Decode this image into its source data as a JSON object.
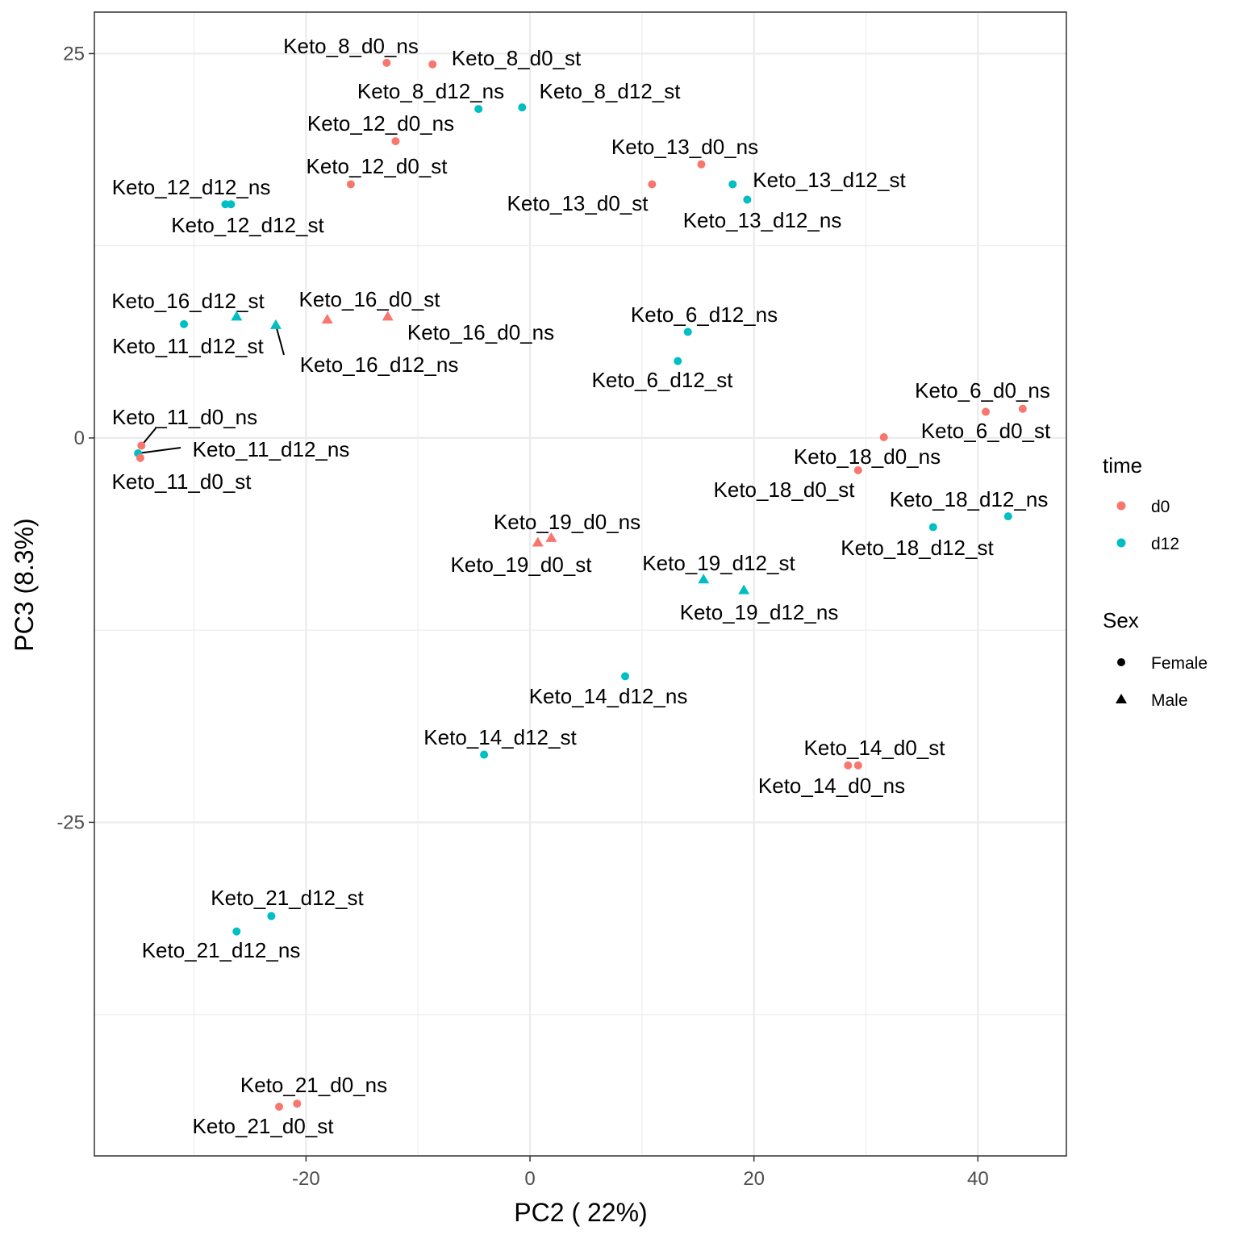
{
  "chart_data": {
    "type": "scatter",
    "title": "",
    "xlabel": "PC2 ( 22%)",
    "ylabel": "PC3 (8.3%)",
    "xlim": [
      -38.9,
      47.9
    ],
    "ylim": [
      -46.7,
      27.7
    ],
    "x_ticks": [
      -20,
      0,
      20,
      40
    ],
    "y_ticks": [
      25,
      0,
      -25
    ],
    "x_tick_labels": [
      "-20",
      "0",
      "20",
      "40"
    ],
    "y_tick_labels": [
      "25",
      "0",
      "-25"
    ],
    "grid": true,
    "colors": {
      "d0": "#F8766D",
      "d12": "#00BFC4"
    },
    "legend": {
      "placement": "right",
      "color_title": "time",
      "color_entries": [
        "d0",
        "d12"
      ],
      "shape_title": "Sex",
      "shape_entries": [
        "Female",
        "Male"
      ]
    },
    "points": [
      {
        "label": "Keto_8_d0_ns",
        "x": -12.8,
        "y": 24.4,
        "time": "d0",
        "sex": "Female"
      },
      {
        "label": "Keto_8_d0_st",
        "x": -8.7,
        "y": 24.3,
        "time": "d0",
        "sex": "Female"
      },
      {
        "label": "Keto_8_d12_ns",
        "x": -4.6,
        "y": 21.4,
        "time": "d12",
        "sex": "Female"
      },
      {
        "label": "Keto_8_d12_st",
        "x": -0.7,
        "y": 21.5,
        "time": "d12",
        "sex": "Female"
      },
      {
        "label": "Keto_12_d0_ns",
        "x": -12.0,
        "y": 19.3,
        "time": "d0",
        "sex": "Female"
      },
      {
        "label": "Keto_12_d0_st",
        "x": -16.0,
        "y": 16.5,
        "time": "d0",
        "sex": "Female"
      },
      {
        "label": "Keto_12_d12_ns",
        "x": -27.2,
        "y": 15.2,
        "time": "d12",
        "sex": "Female"
      },
      {
        "label": "Keto_12_d12_st",
        "x": -26.7,
        "y": 15.2,
        "time": "d12",
        "sex": "Female"
      },
      {
        "label": "Keto_13_d0_ns",
        "x": 15.3,
        "y": 17.8,
        "time": "d0",
        "sex": "Female"
      },
      {
        "label": "Keto_13_d0_st",
        "x": 10.9,
        "y": 16.5,
        "time": "d0",
        "sex": "Female"
      },
      {
        "label": "Keto_13_d12_st",
        "x": 18.1,
        "y": 16.5,
        "time": "d12",
        "sex": "Female"
      },
      {
        "label": "Keto_13_d12_ns",
        "x": 19.4,
        "y": 15.5,
        "time": "d12",
        "sex": "Female"
      },
      {
        "label": "Keto_16_d12_st",
        "x": -26.2,
        "y": 7.9,
        "time": "d12",
        "sex": "Male"
      },
      {
        "label": "Keto_11_d12_st",
        "x": -30.9,
        "y": 7.4,
        "time": "d12",
        "sex": "Female"
      },
      {
        "label": "Keto_16_d12_ns",
        "x": -22.7,
        "y": 7.35,
        "time": "d12",
        "sex": "Male"
      },
      {
        "label": "Keto_16_d0_st",
        "x": -18.1,
        "y": 7.7,
        "time": "d0",
        "sex": "Male"
      },
      {
        "label": "Keto_16_d0_ns",
        "x": -12.7,
        "y": 7.9,
        "time": "d0",
        "sex": "Male"
      },
      {
        "label": "Keto_6_d12_ns",
        "x": 14.1,
        "y": 6.9,
        "time": "d12",
        "sex": "Female"
      },
      {
        "label": "Keto_6_d12_st",
        "x": 13.2,
        "y": 5.0,
        "time": "d12",
        "sex": "Female"
      },
      {
        "label": "Keto_6_d0_ns",
        "x": 44.0,
        "y": 1.9,
        "time": "d0",
        "sex": "Female"
      },
      {
        "label": "Keto_6_d0_st",
        "x": 40.7,
        "y": 1.7,
        "time": "d0",
        "sex": "Female"
      },
      {
        "label": "Keto_18_d0_ns",
        "x": 31.6,
        "y": 0.05,
        "time": "d0",
        "sex": "Female"
      },
      {
        "label": "Keto_18_d0_st",
        "x": 29.3,
        "y": -2.1,
        "time": "d0",
        "sex": "Female"
      },
      {
        "label": "Keto_18_d12_ns",
        "x": 42.7,
        "y": -5.1,
        "time": "d12",
        "sex": "Female"
      },
      {
        "label": "Keto_18_d12_st",
        "x": 36.0,
        "y": -5.8,
        "time": "d12",
        "sex": "Female"
      },
      {
        "label": "Keto_11_d0_ns",
        "x": -34.7,
        "y": -0.5,
        "time": "d0",
        "sex": "Female"
      },
      {
        "label": "Keto_11_d12_ns",
        "x": -35.0,
        "y": -1.0,
        "time": "d12",
        "sex": "Female"
      },
      {
        "label": "Keto_11_d0_st",
        "x": -34.8,
        "y": -1.3,
        "time": "d0",
        "sex": "Female"
      },
      {
        "label": "Keto_19_d0_ns",
        "x": 1.9,
        "y": -6.5,
        "time": "d0",
        "sex": "Male"
      },
      {
        "label": "Keto_19_d0_st",
        "x": 0.7,
        "y": -6.8,
        "time": "d0",
        "sex": "Male"
      },
      {
        "label": "Keto_19_d12_st",
        "x": 15.5,
        "y": -9.2,
        "time": "d12",
        "sex": "Male"
      },
      {
        "label": "Keto_19_d12_ns",
        "x": 19.1,
        "y": -9.9,
        "time": "d12",
        "sex": "Male"
      },
      {
        "label": "Keto_14_d12_ns",
        "x": 8.5,
        "y": -15.5,
        "time": "d12",
        "sex": "Female"
      },
      {
        "label": "Keto_14_d12_st",
        "x": -4.1,
        "y": -20.6,
        "time": "d12",
        "sex": "Female"
      },
      {
        "label": "Keto_14_d0_st",
        "x": 29.3,
        "y": -21.3,
        "time": "d0",
        "sex": "Female"
      },
      {
        "label": "Keto_14_d0_ns",
        "x": 28.4,
        "y": -21.3,
        "time": "d0",
        "sex": "Female"
      },
      {
        "label": "Keto_21_d12_st",
        "x": -23.1,
        "y": -31.1,
        "time": "d12",
        "sex": "Female"
      },
      {
        "label": "Keto_21_d12_ns",
        "x": -26.2,
        "y": -32.1,
        "time": "d12",
        "sex": "Female"
      },
      {
        "label": "Keto_21_d0_ns",
        "x": -20.8,
        "y": -43.3,
        "time": "d0",
        "sex": "Female"
      },
      {
        "label": "Keto_21_d0_st",
        "x": -22.4,
        "y": -43.5,
        "time": "d0",
        "sex": "Female"
      }
    ]
  }
}
